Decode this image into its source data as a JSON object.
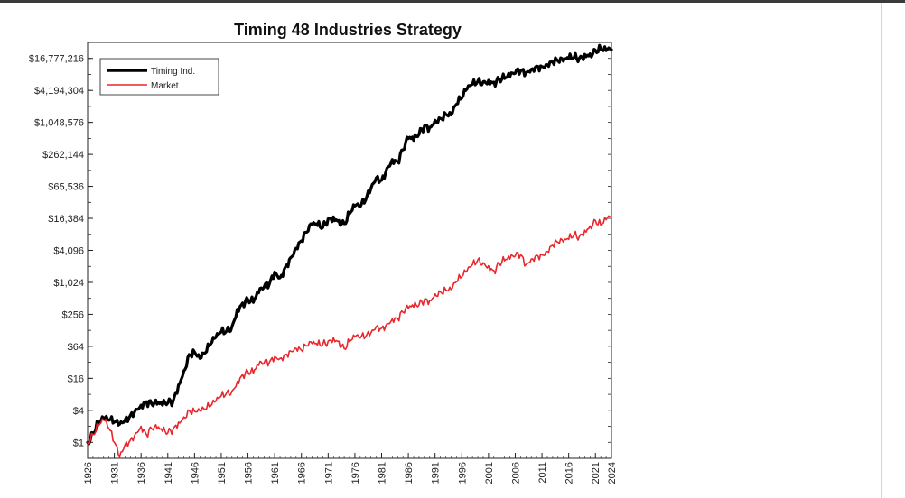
{
  "chart_data": {
    "type": "line",
    "title": "Timing 48 Industries Strategy",
    "xlabel": "",
    "ylabel": "",
    "yscale": "log2",
    "xlim": [
      1926,
      2024
    ],
    "ylim": [
      0.5,
      33554432
    ],
    "x_ticks": [
      "1926",
      "1931",
      "1936",
      "1941",
      "1946",
      "1951",
      "1956",
      "1961",
      "1966",
      "1971",
      "1976",
      "1981",
      "1986",
      "1991",
      "1996",
      "2001",
      "2006",
      "2011",
      "2016",
      "2021",
      "2024"
    ],
    "y_ticks": [
      {
        "value": 1,
        "label": "$1"
      },
      {
        "value": 4,
        "label": "$4"
      },
      {
        "value": 16,
        "label": "$16"
      },
      {
        "value": 64,
        "label": "$64"
      },
      {
        "value": 256,
        "label": "$256"
      },
      {
        "value": 1024,
        "label": "$1,024"
      },
      {
        "value": 4096,
        "label": "$4,096"
      },
      {
        "value": 16384,
        "label": "$16,384"
      },
      {
        "value": 65536,
        "label": "$65,536"
      },
      {
        "value": 262144,
        "label": "$262,144"
      },
      {
        "value": 1048576,
        "label": "$1,048,576"
      },
      {
        "value": 4194304,
        "label": "$4,194,304"
      },
      {
        "value": 16777216,
        "label": "$16,777,216"
      }
    ],
    "legend_position": "top-left",
    "series": [
      {
        "name": "Timing Ind.",
        "color": "#000000",
        "x": [
          1926,
          1927,
          1928,
          1929,
          1930,
          1931,
          1932,
          1933,
          1934,
          1935,
          1936,
          1937,
          1938,
          1939,
          1940,
          1941,
          1942,
          1943,
          1944,
          1945,
          1946,
          1947,
          1948,
          1949,
          1950,
          1951,
          1952,
          1953,
          1954,
          1955,
          1956,
          1957,
          1958,
          1959,
          1960,
          1961,
          1962,
          1963,
          1964,
          1965,
          1966,
          1967,
          1968,
          1969,
          1970,
          1971,
          1972,
          1973,
          1974,
          1975,
          1976,
          1977,
          1978,
          1979,
          1980,
          1981,
          1982,
          1983,
          1984,
          1985,
          1986,
          1987,
          1988,
          1989,
          1990,
          1991,
          1992,
          1993,
          1994,
          1995,
          1996,
          1997,
          1998,
          1999,
          2000,
          2001,
          2002,
          2003,
          2004,
          2005,
          2006,
          2007,
          2008,
          2009,
          2010,
          2011,
          2012,
          2013,
          2014,
          2015,
          2016,
          2017,
          2018,
          2019,
          2020,
          2021,
          2022,
          2023,
          2024
        ],
        "values": [
          1,
          1.5,
          2.3,
          2.8,
          2.6,
          2.4,
          2.2,
          2.6,
          3.2,
          4.2,
          5,
          5.8,
          5.2,
          5.2,
          5,
          5.5,
          6,
          12,
          22,
          45,
          50,
          38,
          48,
          70,
          95,
          120,
          125,
          150,
          320,
          420,
          480,
          430,
          650,
          820,
          950,
          1600,
          1250,
          2000,
          3000,
          4500,
          6200,
          9000,
          12500,
          12000,
          11000,
          16000,
          17500,
          15000,
          13000,
          20000,
          28000,
          27000,
          36000,
          60000,
          95000,
          85000,
          145000,
          210000,
          190000,
          320000,
          520000,
          480000,
          620000,
          900000,
          850000,
          1150000,
          1250000,
          1500000,
          1450000,
          2300000,
          3000000,
          4500000,
          5500000,
          6200000,
          6100000,
          6500000,
          6000000,
          6800000,
          7000000,
          7600000,
          8800000,
          9800000,
          9000000,
          10500000,
          12000000,
          11800000,
          12800000,
          14500000,
          15000000,
          14800000,
          16500000,
          17500000,
          17000000,
          20000000,
          20500000,
          24000000,
          25000000,
          23500000,
          24500000
        ]
      },
      {
        "name": "Market",
        "color": "#e8262c",
        "x": [
          1926,
          1927,
          1928,
          1929,
          1930,
          1931,
          1932,
          1933,
          1934,
          1935,
          1936,
          1937,
          1938,
          1939,
          1940,
          1941,
          1942,
          1943,
          1944,
          1945,
          1946,
          1947,
          1948,
          1949,
          1950,
          1951,
          1952,
          1953,
          1954,
          1955,
          1956,
          1957,
          1958,
          1959,
          1960,
          1961,
          1962,
          1963,
          1964,
          1965,
          1966,
          1967,
          1968,
          1969,
          1970,
          1971,
          1972,
          1973,
          1974,
          1975,
          1976,
          1977,
          1978,
          1979,
          1980,
          1981,
          1982,
          1983,
          1984,
          1985,
          1986,
          1987,
          1988,
          1989,
          1990,
          1991,
          1992,
          1993,
          1994,
          1995,
          1996,
          1997,
          1998,
          1999,
          2000,
          2001,
          2002,
          2003,
          2004,
          2005,
          2006,
          2007,
          2008,
          2009,
          2010,
          2011,
          2012,
          2013,
          2014,
          2015,
          2016,
          2017,
          2018,
          2019,
          2020,
          2021,
          2022,
          2023,
          2024
        ],
        "values": [
          1,
          1.4,
          2,
          2.6,
          1.8,
          1,
          0.55,
          0.9,
          1.1,
          1.5,
          2,
          1.4,
          1.8,
          1.8,
          1.6,
          1.5,
          1.8,
          2.4,
          3,
          4,
          3.8,
          3.9,
          4.2,
          4.8,
          6,
          7.5,
          8.5,
          9.2,
          14,
          19,
          21,
          20,
          28,
          31,
          32,
          41,
          38,
          45,
          52,
          59,
          54,
          65,
          72,
          68,
          70,
          80,
          94,
          80,
          58,
          78,
          96,
          92,
          98,
          115,
          150,
          140,
          170,
          210,
          215,
          280,
          330,
          350,
          380,
          490,
          470,
          620,
          680,
          740,
          750,
          1050,
          1300,
          1700,
          2200,
          2700,
          2400,
          2100,
          1700,
          2300,
          2600,
          2800,
          3200,
          3400,
          2200,
          2800,
          3300,
          3350,
          3900,
          5100,
          5800,
          5900,
          6600,
          8000,
          7500,
          9800,
          11800,
          15000,
          12200,
          15400,
          17500
        ]
      }
    ]
  }
}
